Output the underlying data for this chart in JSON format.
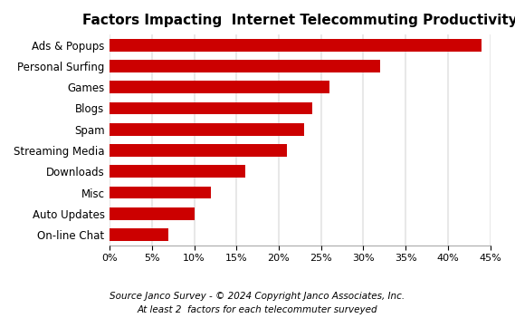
{
  "title": "Factors Impacting  Internet Telecommuting Productivity",
  "categories": [
    "On-line Chat",
    "Auto Updates",
    "Misc",
    "Downloads",
    "Streaming Media",
    "Spam",
    "Blogs",
    "Games",
    "Personal Surfing",
    "Ads & Popups"
  ],
  "values": [
    0.07,
    0.1,
    0.12,
    0.16,
    0.21,
    0.23,
    0.24,
    0.26,
    0.32,
    0.44
  ],
  "bar_color": "#cc0000",
  "fig_bg_color": "#ffffff",
  "plot_bg_color": "#e8e8e8",
  "bar_bg_color": "#ffffff",
  "xlim": [
    0,
    0.45
  ],
  "xticks": [
    0,
    0.05,
    0.1,
    0.15,
    0.2,
    0.25,
    0.3,
    0.35,
    0.4,
    0.45
  ],
  "footnote1": "Source Janco Survey - © 2024 Copyright Janco Associates, Inc.",
  "footnote2": "At least 2  factors for each telecommuter surveyed",
  "title_fontsize": 11,
  "tick_fontsize": 8,
  "label_fontsize": 8.5,
  "footnote_fontsize": 7.5,
  "bar_height": 0.6
}
